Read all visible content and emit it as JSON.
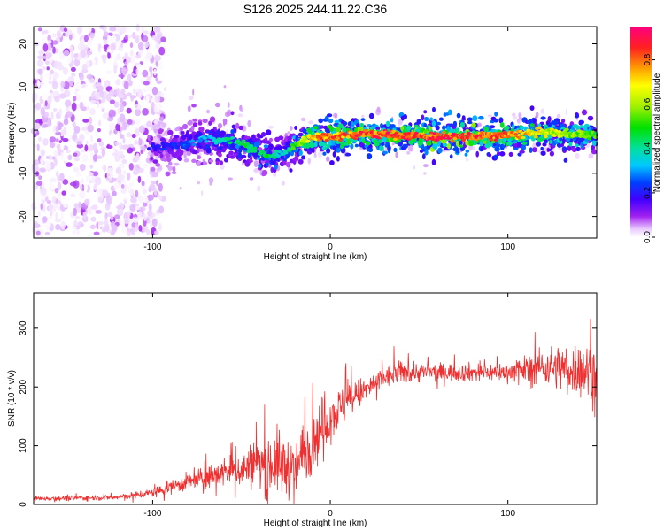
{
  "title": "S126.2025.244.11.22.C36",
  "chart_data": [
    {
      "type": "heatmap",
      "title": "S126.2025.244.11.22.C36",
      "xlabel": "Height of straight line (km)",
      "ylabel": "Frequency (Hz)",
      "xlim": [
        -167,
        150
      ],
      "ylim": [
        -25,
        24
      ],
      "xticks": [
        -100,
        0,
        100
      ],
      "yticks": [
        -20,
        -10,
        0,
        10,
        20
      ],
      "colorbar": {
        "label": "Normalized spectral amplitude",
        "range": [
          0.0,
          0.95
        ],
        "ticks": [
          0.0,
          0.2,
          0.4,
          0.6,
          0.8
        ],
        "tick_labels": [
          "0.0",
          "0.2",
          "0.4",
          "0.6",
          "0.8"
        ]
      },
      "ridge": {
        "x": [
          -100,
          -85,
          -70,
          -55,
          -45,
          -38,
          -32,
          -25,
          -18,
          -10,
          0,
          20,
          40,
          60,
          80,
          100,
          120,
          140,
          150
        ],
        "freq": [
          -4,
          -3.5,
          -2,
          -2.5,
          -4,
          -5.5,
          -6,
          -5,
          -3,
          -1.5,
          -1.5,
          -0.8,
          -1.2,
          -1.5,
          -1.5,
          -1.2,
          -0.5,
          -1,
          -1
        ],
        "amplitude": [
          0.2,
          0.25,
          0.35,
          0.45,
          0.5,
          0.5,
          0.45,
          0.4,
          0.6,
          0.8,
          0.85,
          0.9,
          0.88,
          0.92,
          0.9,
          0.85,
          0.7,
          0.6,
          0.55
        ]
      },
      "noise_region": {
        "x_from": -167,
        "x_to": -102,
        "freq_from": -24,
        "freq_to": 24,
        "amplitude_max": 0.1
      }
    },
    {
      "type": "line",
      "xlabel": "Height of straight line (km)",
      "ylabel": "SNR (10 * v/v)",
      "xlim": [
        -167,
        150
      ],
      "ylim": [
        0,
        360
      ],
      "xticks": [
        -100,
        0,
        100
      ],
      "yticks": [
        0,
        100,
        200,
        300
      ],
      "series": [
        {
          "name": "SNR",
          "color": "#f03030",
          "envelope_x": [
            -167,
            -120,
            -100,
            -90,
            -80,
            -70,
            -60,
            -50,
            -40,
            -30,
            -20,
            -10,
            0,
            10,
            20,
            30,
            40,
            60,
            80,
            100,
            120,
            140,
            150
          ],
          "envelope_mean": [
            10,
            12,
            20,
            30,
            38,
            45,
            55,
            60,
            70,
            70,
            60,
            110,
            150,
            175,
            195,
            215,
            225,
            225,
            225,
            225,
            235,
            230,
            225
          ],
          "envelope_spread": [
            5,
            6,
            10,
            15,
            20,
            25,
            30,
            40,
            55,
            75,
            60,
            70,
            55,
            40,
            30,
            25,
            25,
            20,
            20,
            20,
            40,
            60,
            65
          ]
        }
      ]
    }
  ]
}
